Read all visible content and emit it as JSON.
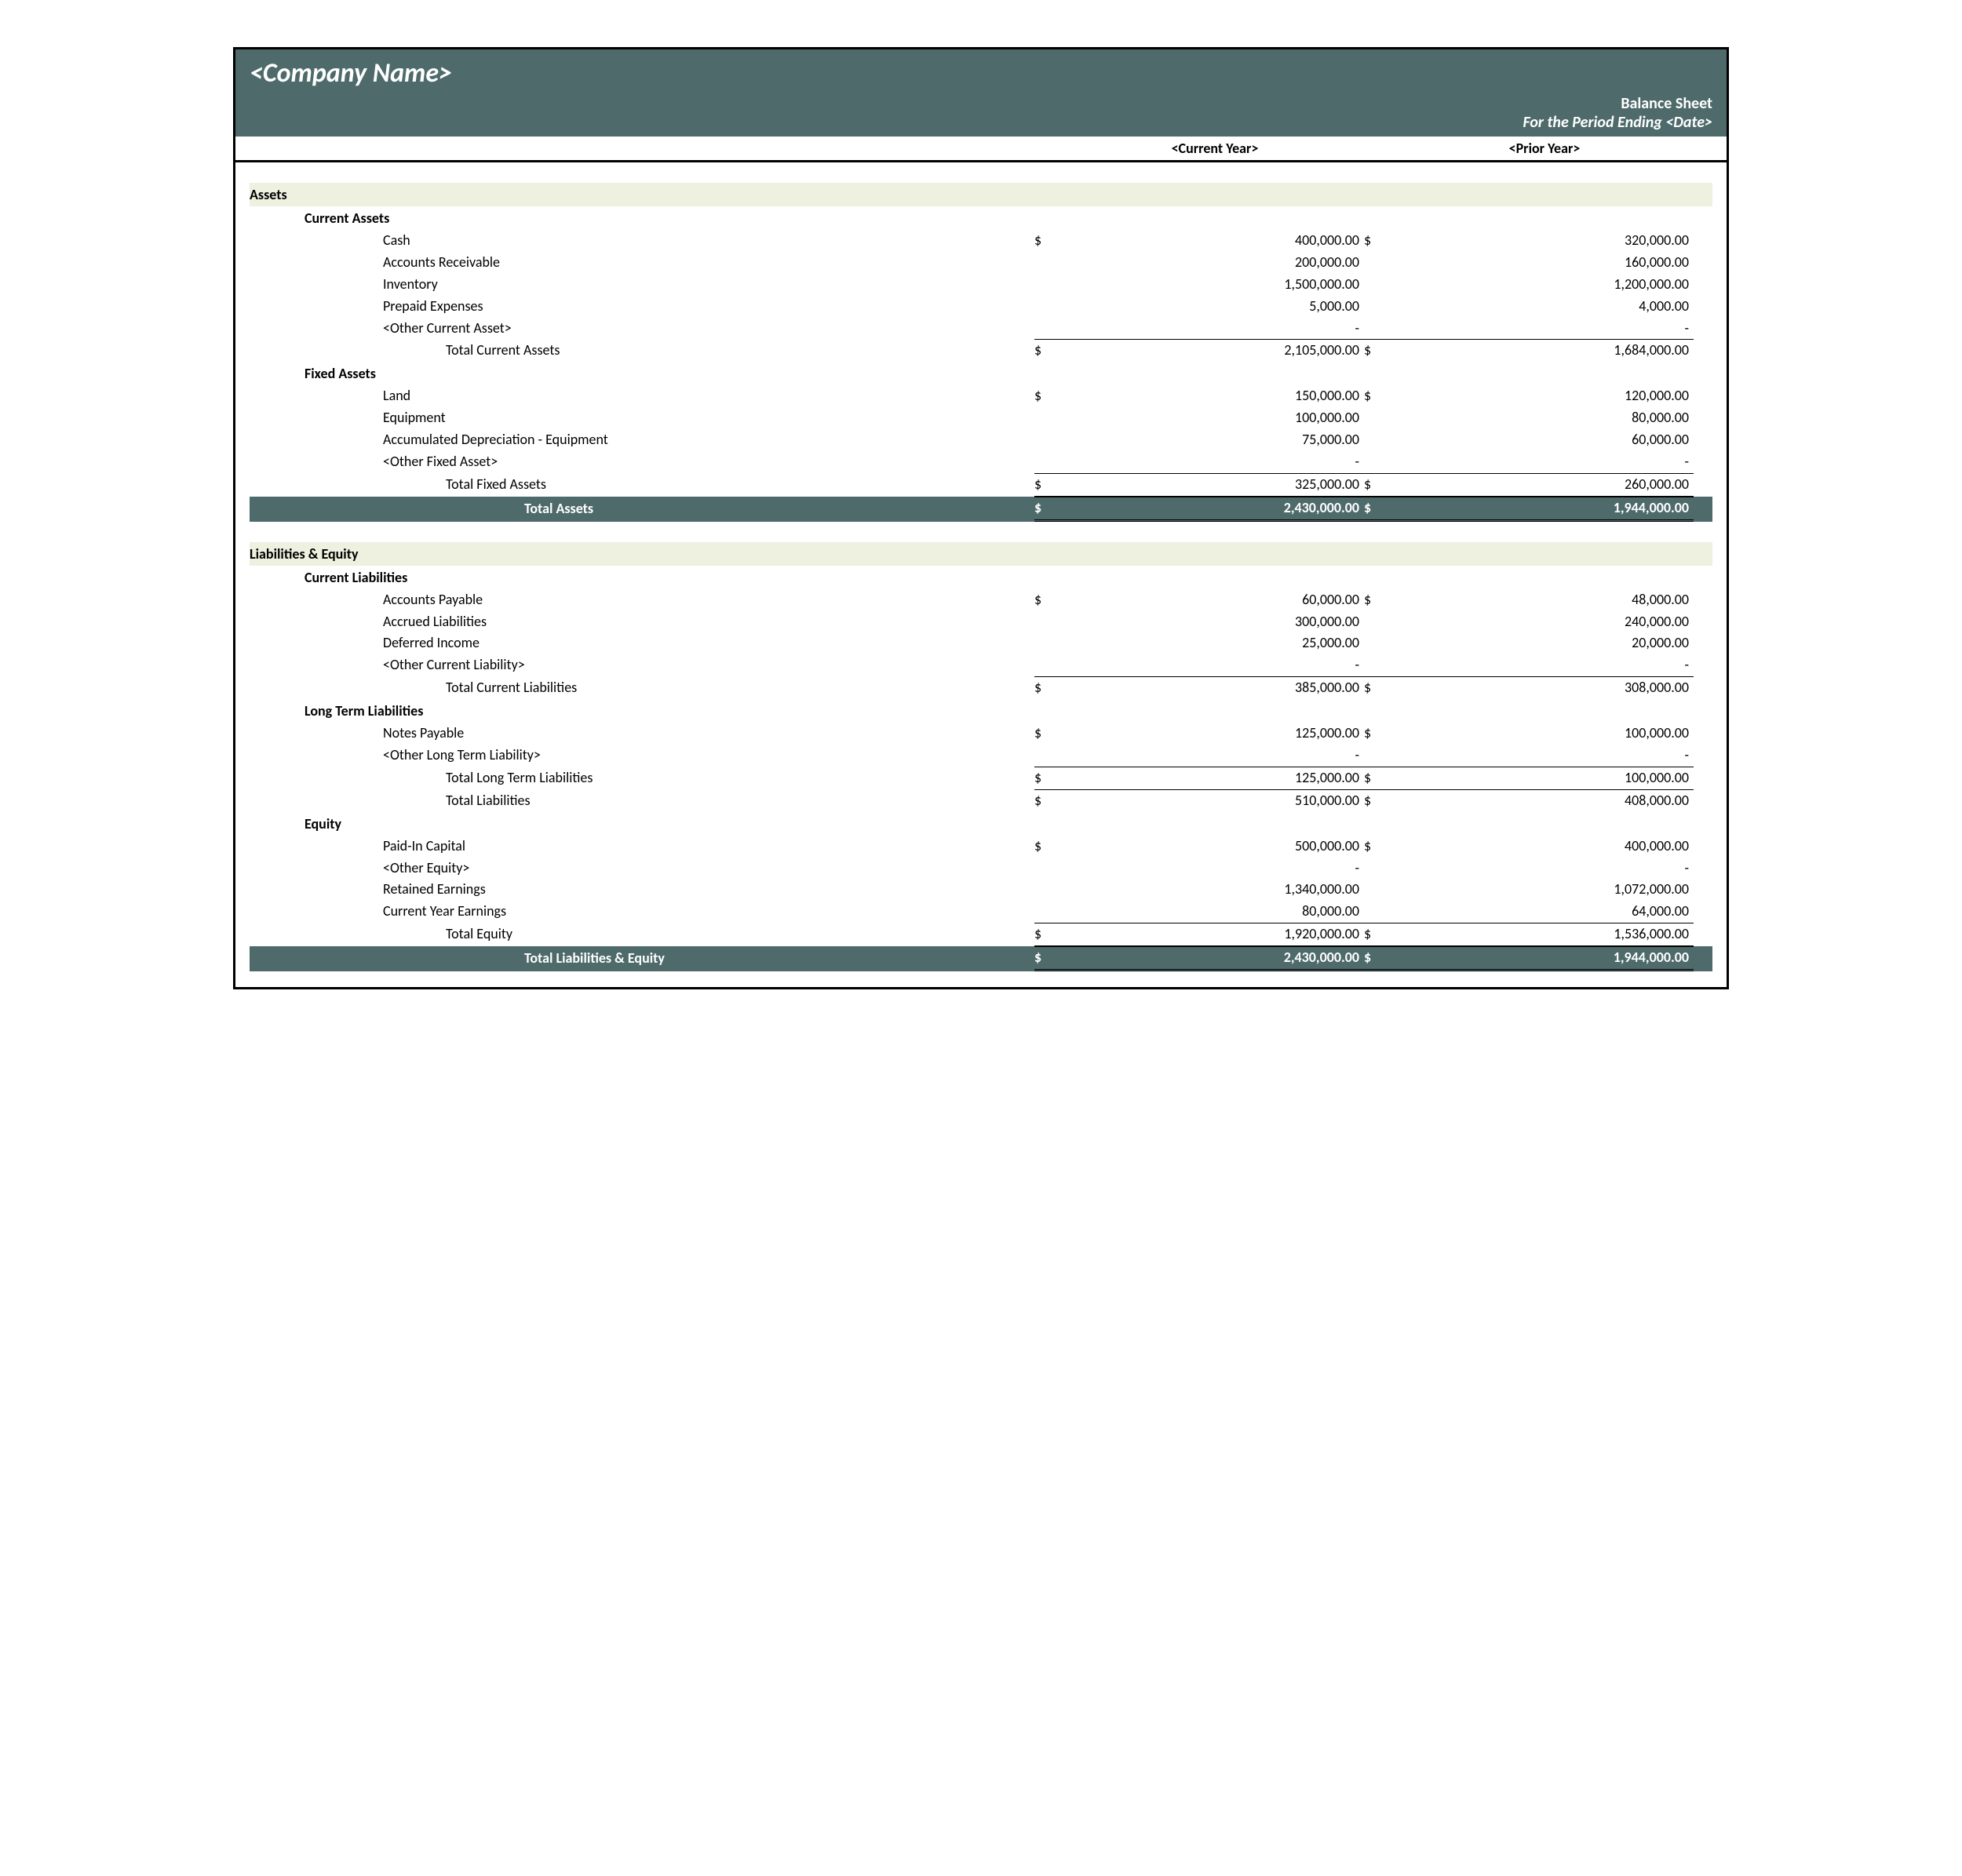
{
  "colors": {
    "header_bg": "#4e6a6b",
    "section_bg": "#eef0e0",
    "text": "#000000",
    "header_text": "#ffffff"
  },
  "header": {
    "company_name": "<Company Name>",
    "title": "Balance Sheet",
    "period": "For the Period Ending <Date>",
    "current_year_label": "<Current Year>",
    "prior_year_label": "<Prior Year>"
  },
  "sections": {
    "assets": {
      "title": "Assets",
      "current_assets": {
        "label": "Current Assets",
        "cash": {
          "label": "Cash",
          "cur": "400,000.00",
          "prior": "320,000.00",
          "show_dollar": true
        },
        "ar": {
          "label": "Accounts Receivable",
          "cur": "200,000.00",
          "prior": "160,000.00"
        },
        "inventory": {
          "label": "Inventory",
          "cur": "1,500,000.00",
          "prior": "1,200,000.00"
        },
        "prepaid": {
          "label": "Prepaid Expenses",
          "cur": "5,000.00",
          "prior": "4,000.00"
        },
        "other": {
          "label": "<Other Current Asset>",
          "cur": "-",
          "prior": "-"
        },
        "total": {
          "label": "Total Current Assets",
          "cur": "2,105,000.00",
          "prior": "1,684,000.00",
          "show_dollar": true
        }
      },
      "fixed_assets": {
        "label": "Fixed Assets",
        "land": {
          "label": "Land",
          "cur": "150,000.00",
          "prior": "120,000.00",
          "show_dollar": true
        },
        "equipment": {
          "label": "Equipment",
          "cur": "100,000.00",
          "prior": "80,000.00"
        },
        "accdep": {
          "label": "Accumulated Depreciation - Equipment",
          "cur": "75,000.00",
          "prior": "60,000.00"
        },
        "other": {
          "label": "<Other Fixed Asset>",
          "cur": "-",
          "prior": "-"
        },
        "total": {
          "label": "Total Fixed Assets",
          "cur": "325,000.00",
          "prior": "260,000.00",
          "show_dollar": true
        }
      },
      "grand": {
        "label": "Total Assets",
        "cur": "2,430,000.00",
        "prior": "1,944,000.00",
        "show_dollar": true
      }
    },
    "liab_equity": {
      "title": "Liabilities & Equity",
      "current_liab": {
        "label": "Current Liabilities",
        "ap": {
          "label": "Accounts Payable",
          "cur": "60,000.00",
          "prior": "48,000.00",
          "show_dollar": true
        },
        "accrued": {
          "label": "Accrued Liabilities",
          "cur": "300,000.00",
          "prior": "240,000.00"
        },
        "deferred": {
          "label": "Deferred Income",
          "cur": "25,000.00",
          "prior": "20,000.00"
        },
        "other": {
          "label": "<Other Current Liability>",
          "cur": "-",
          "prior": "-"
        },
        "total": {
          "label": "Total Current Liabilities",
          "cur": "385,000.00",
          "prior": "308,000.00",
          "show_dollar": true
        }
      },
      "long_term": {
        "label": "Long Term Liabilities",
        "notes": {
          "label": "Notes Payable",
          "cur": "125,000.00",
          "prior": "100,000.00",
          "show_dollar": true
        },
        "other": {
          "label": "<Other Long Term Liability>",
          "cur": "-",
          "prior": "-"
        },
        "total": {
          "label": "Total Long Term Liabilities",
          "cur": "125,000.00",
          "prior": "100,000.00",
          "show_dollar": true
        },
        "total_liab": {
          "label": "Total Liabilities",
          "cur": "510,000.00",
          "prior": "408,000.00",
          "show_dollar": true
        }
      },
      "equity": {
        "label": "Equity",
        "paidin": {
          "label": "Paid-In Capital",
          "cur": "500,000.00",
          "prior": "400,000.00",
          "show_dollar": true
        },
        "other": {
          "label": "<Other Equity>",
          "cur": "-",
          "prior": "-"
        },
        "retained": {
          "label": "Retained Earnings",
          "cur": "1,340,000.00",
          "prior": "1,072,000.00"
        },
        "cye": {
          "label": "Current Year Earnings",
          "cur": "80,000.00",
          "prior": "64,000.00"
        },
        "total": {
          "label": "Total Equity",
          "cur": "1,920,000.00",
          "prior": "1,536,000.00",
          "show_dollar": true
        }
      },
      "grand": {
        "label": "Total Liabilities & Equity",
        "cur": "2,430,000.00",
        "prior": "1,944,000.00",
        "show_dollar": true
      }
    }
  }
}
